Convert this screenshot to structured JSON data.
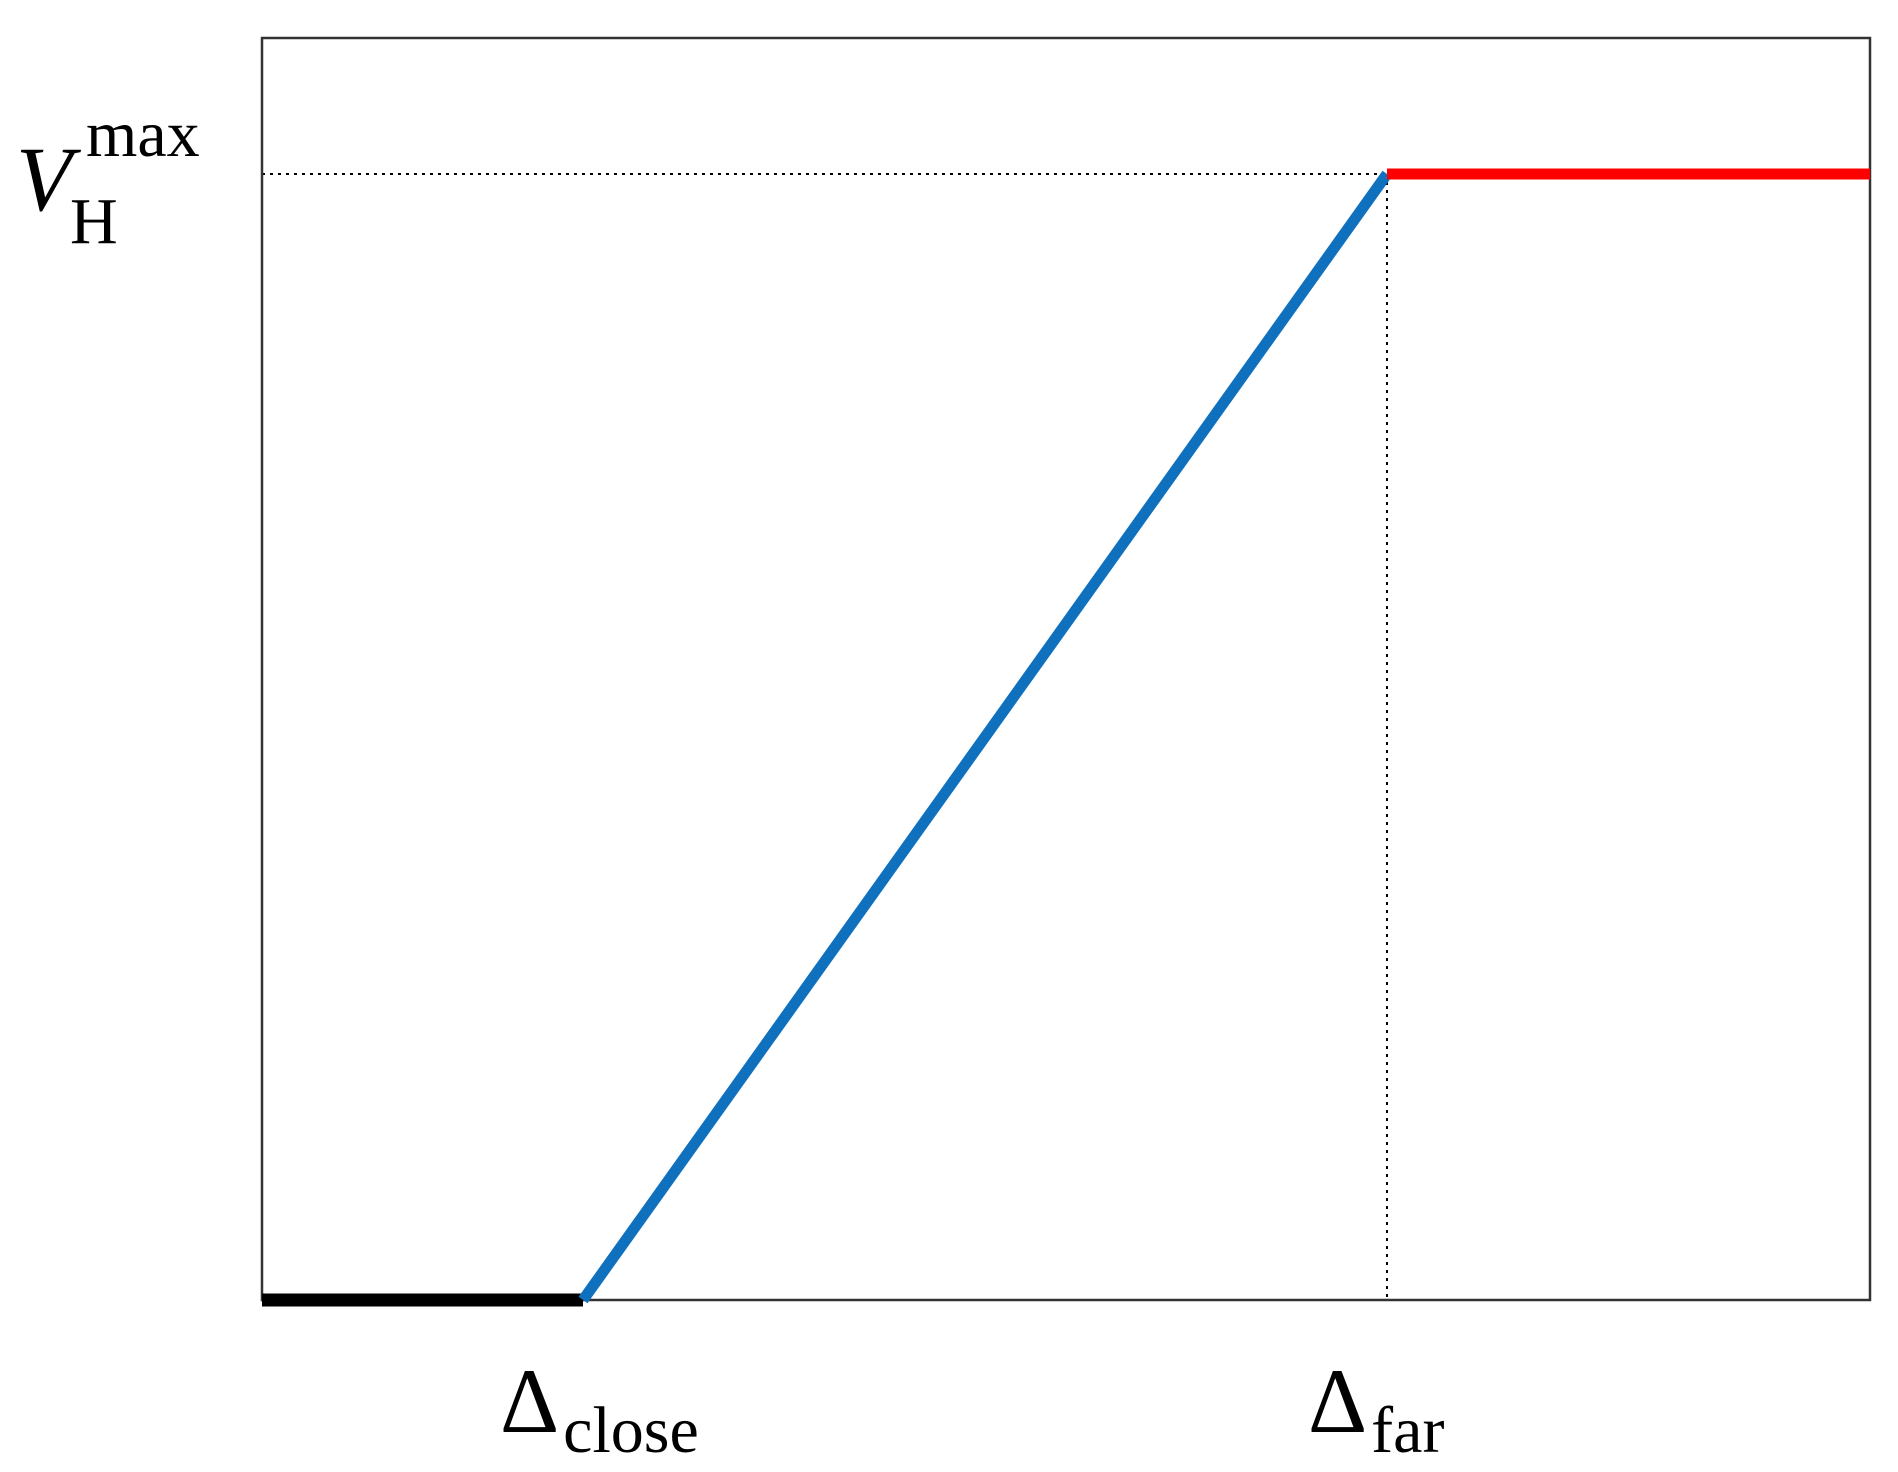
{
  "labels": {
    "y_max": {
      "base": "V",
      "sub": "H",
      "sup": "max"
    },
    "x_close": {
      "base": "Δ",
      "sub": "close"
    },
    "x_far": {
      "base": "Δ",
      "sub": "far"
    }
  }
}
